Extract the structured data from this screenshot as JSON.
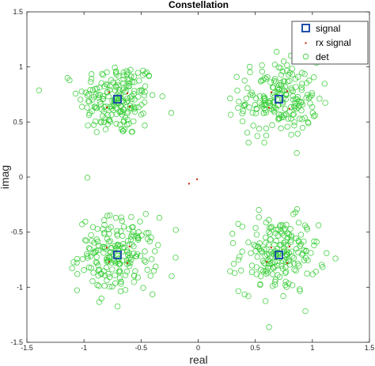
{
  "chart_data": {
    "type": "scatter",
    "title": "Constellation",
    "xlabel": "real",
    "ylabel": "imag",
    "xlim": [
      -1.5,
      1.5
    ],
    "ylim": [
      -1.5,
      1.5
    ],
    "xticks": [
      -1.5,
      -1,
      -0.5,
      0,
      0.5,
      1,
      1.5
    ],
    "xtick_labels": [
      "-1.5",
      "-1",
      "-0.5",
      "0",
      "0.5",
      "1",
      "1.5"
    ],
    "yticks": [
      -1.5,
      -1,
      -0.5,
      0,
      0.5,
      1,
      1.5
    ],
    "ytick_labels": [
      "-1.5",
      "-1",
      "-0.5",
      "0",
      "0.5",
      "1",
      "1.5"
    ],
    "grid": false,
    "legend_position": "top-right",
    "series": [
      {
        "name": "signal",
        "marker": "square",
        "color": "#1f4fa8",
        "x": [
          -0.7071,
          0.7071,
          -0.7071,
          0.7071
        ],
        "y": [
          0.7071,
          0.7071,
          -0.7071,
          -0.7071
        ]
      },
      {
        "name": "rx signal",
        "marker": "dot",
        "color": "#cc2200",
        "x": [
          -0.78,
          -0.62,
          -0.8,
          -0.6,
          0.64,
          0.78,
          0.62,
          0.8,
          -0.8,
          -0.6,
          -0.78,
          -0.62,
          0.64,
          0.8,
          0.6,
          0.78,
          -0.08,
          -0.01
        ],
        "y": [
          0.77,
          0.76,
          0.63,
          0.64,
          0.77,
          0.78,
          0.63,
          0.62,
          -0.64,
          -0.63,
          -0.77,
          -0.78,
          -0.64,
          -0.63,
          -0.77,
          -0.78,
          -0.06,
          -0.02
        ]
      },
      {
        "name": "det",
        "marker": "circle",
        "color": "#33cc33",
        "count_per_cluster": 200,
        "spread_std": 0.17,
        "cluster_centers": [
          [
            -0.7071,
            0.7071
          ],
          [
            0.7071,
            0.7071
          ],
          [
            -0.7071,
            -0.7071
          ],
          [
            0.7071,
            -0.7071
          ]
        ]
      }
    ]
  },
  "legend": {
    "entries": [
      "signal",
      "rx signal",
      "det"
    ]
  },
  "colors": {
    "background": "#ffffff",
    "axes": "#262626",
    "signal": "#1f4fa8",
    "rx_signal": "#cc2200",
    "det": "#33cc33"
  }
}
